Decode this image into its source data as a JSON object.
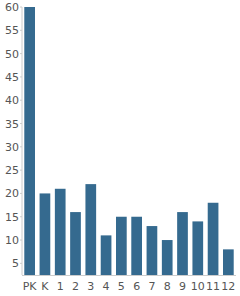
{
  "chart_data": {
    "type": "bar",
    "categories": [
      "PK",
      "K",
      "1",
      "2",
      "3",
      "4",
      "5",
      "6",
      "7",
      "8",
      "9",
      "10",
      "11",
      "12"
    ],
    "values": [
      60,
      20,
      21,
      16,
      22,
      11,
      15,
      15,
      13,
      10,
      16,
      14,
      18,
      8
    ],
    "color": "#356a8f",
    "ylim": [
      2.5,
      60
    ],
    "yticks": [
      5,
      10,
      15,
      20,
      25,
      30,
      35,
      40,
      45,
      50,
      55,
      60
    ],
    "grid": false
  }
}
